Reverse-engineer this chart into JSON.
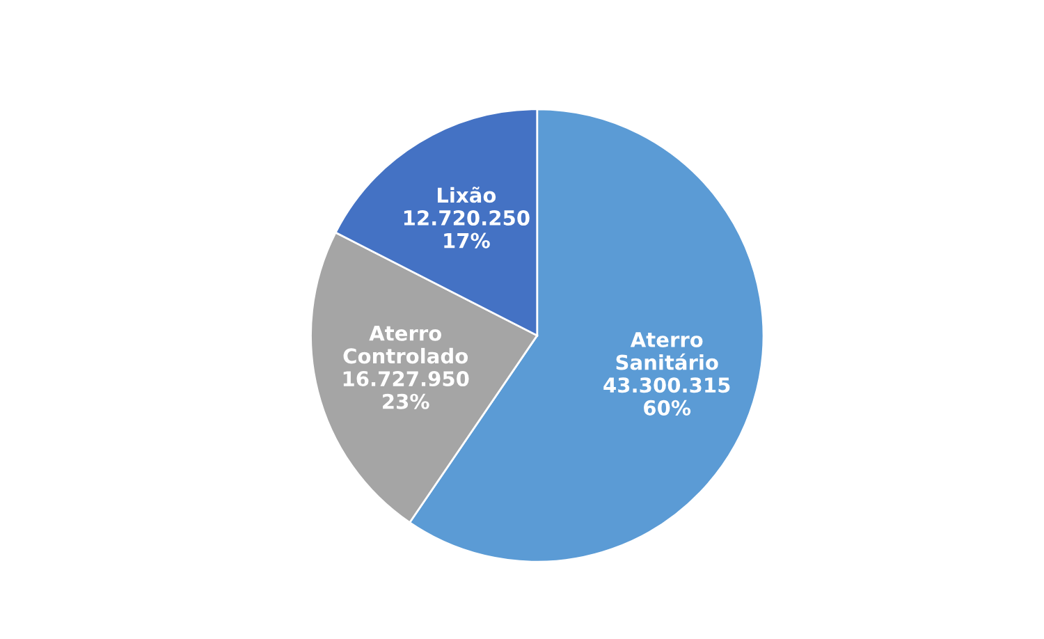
{
  "chart_data": {
    "type": "pie",
    "categories": [
      "Aterro Sanitário",
      "Aterro Controlado",
      "Lixão"
    ],
    "values": [
      43300315,
      16727950,
      12720250
    ],
    "colors": [
      "#5b9bd5",
      "#a5a5a5",
      "#4472c4"
    ],
    "value_labels": [
      "43.300.315\n60%",
      "16.727.950\n23%",
      "12.720.250\n17%"
    ],
    "legend": false
  }
}
